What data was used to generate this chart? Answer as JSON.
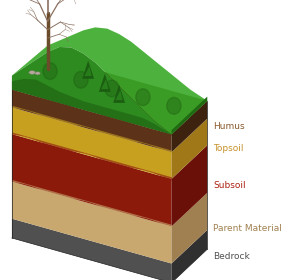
{
  "layers": [
    {
      "name": "Humus",
      "front_color": "#5c3318",
      "side_color": "#3d220f",
      "thickness": 0.12
    },
    {
      "name": "Topsoil",
      "front_color": "#c8a020",
      "side_color": "#a07818",
      "thickness": 0.18
    },
    {
      "name": "Subsoil",
      "front_color": "#8b1a0a",
      "side_color": "#6b1008",
      "thickness": 0.32
    },
    {
      "name": "Parent Material",
      "front_color": "#c8a86e",
      "side_color": "#a08050",
      "thickness": 0.25
    },
    {
      "name": "Bedrock",
      "front_color": "#505050",
      "side_color": "#303030",
      "thickness": 0.13
    }
  ],
  "grass_front_color": "#2e8b20",
  "grass_side_color": "#1e6b12",
  "grass_top_color": "#3aaa28",
  "grass_dark_color": "#1a5a10",
  "humus_top_color": "#4a2810",
  "label_colors": {
    "Humus": "#8b5a2b",
    "Topsoil": "#c8922a",
    "Subsoil": "#aa2010",
    "Parent Material": "#a08050",
    "Bedrock": "#505050"
  },
  "label_fontsize": 6.5,
  "background_color": "#ffffff",
  "tree_color": "#6b4c2a",
  "branch_color": "#8a7060",
  "rock_color": "#b0a898"
}
